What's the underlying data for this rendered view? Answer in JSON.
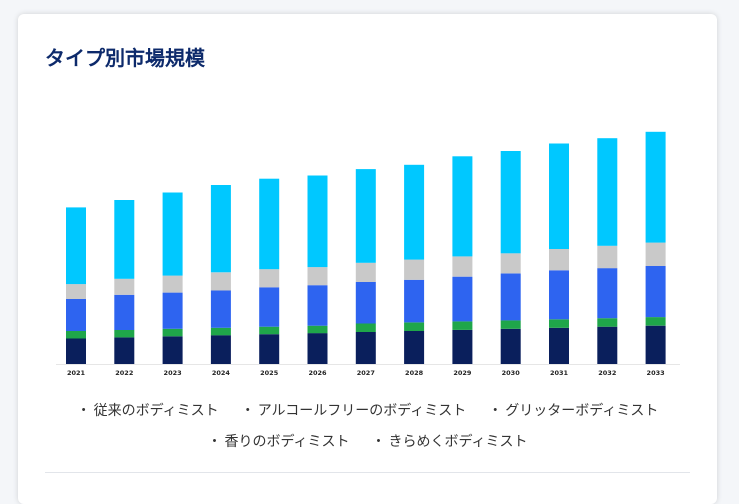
{
  "title": "タイプ別市場規模",
  "chart_data": {
    "type": "bar",
    "stacked": true,
    "title": "タイプ別市場規模",
    "categories": [
      "2021",
      "2022",
      "2023",
      "2024",
      "2025",
      "2026",
      "2027",
      "2028",
      "2029",
      "2030",
      "2031",
      "2032",
      "2033"
    ],
    "series": [
      {
        "name": "従来のボディミスト",
        "color": "#0a1f5c",
        "values": [
          24,
          25,
          26,
          27,
          28,
          29,
          30,
          31,
          32,
          33,
          34,
          35,
          36
        ]
      },
      {
        "name": "アルコールフリーのボディミスト",
        "color": "#1fa64a",
        "values": [
          7,
          7,
          7,
          7,
          7,
          7,
          8,
          8,
          8,
          8,
          8,
          8,
          8
        ]
      },
      {
        "name": "グリッターボディミスト",
        "color": "#2e64f0",
        "values": [
          30,
          33,
          34,
          35,
          37,
          38,
          39,
          40,
          42,
          44,
          46,
          47,
          48
        ]
      },
      {
        "name": "香りのボディミスト",
        "color": "#c9c9c9",
        "values": [
          14,
          15,
          16,
          17,
          17,
          17,
          18,
          19,
          19,
          19,
          20,
          21,
          22
        ]
      },
      {
        "name": "きらめくボディミスト",
        "color": "#00c8ff",
        "values": [
          72,
          74,
          78,
          82,
          85,
          86,
          88,
          89,
          94,
          96,
          99,
          101,
          104
        ]
      }
    ],
    "ylim": [
      0,
      230
    ],
    "xlabel": "",
    "ylabel": "",
    "grid": false,
    "legend_position": "bottom"
  },
  "legend_bullet": "・"
}
